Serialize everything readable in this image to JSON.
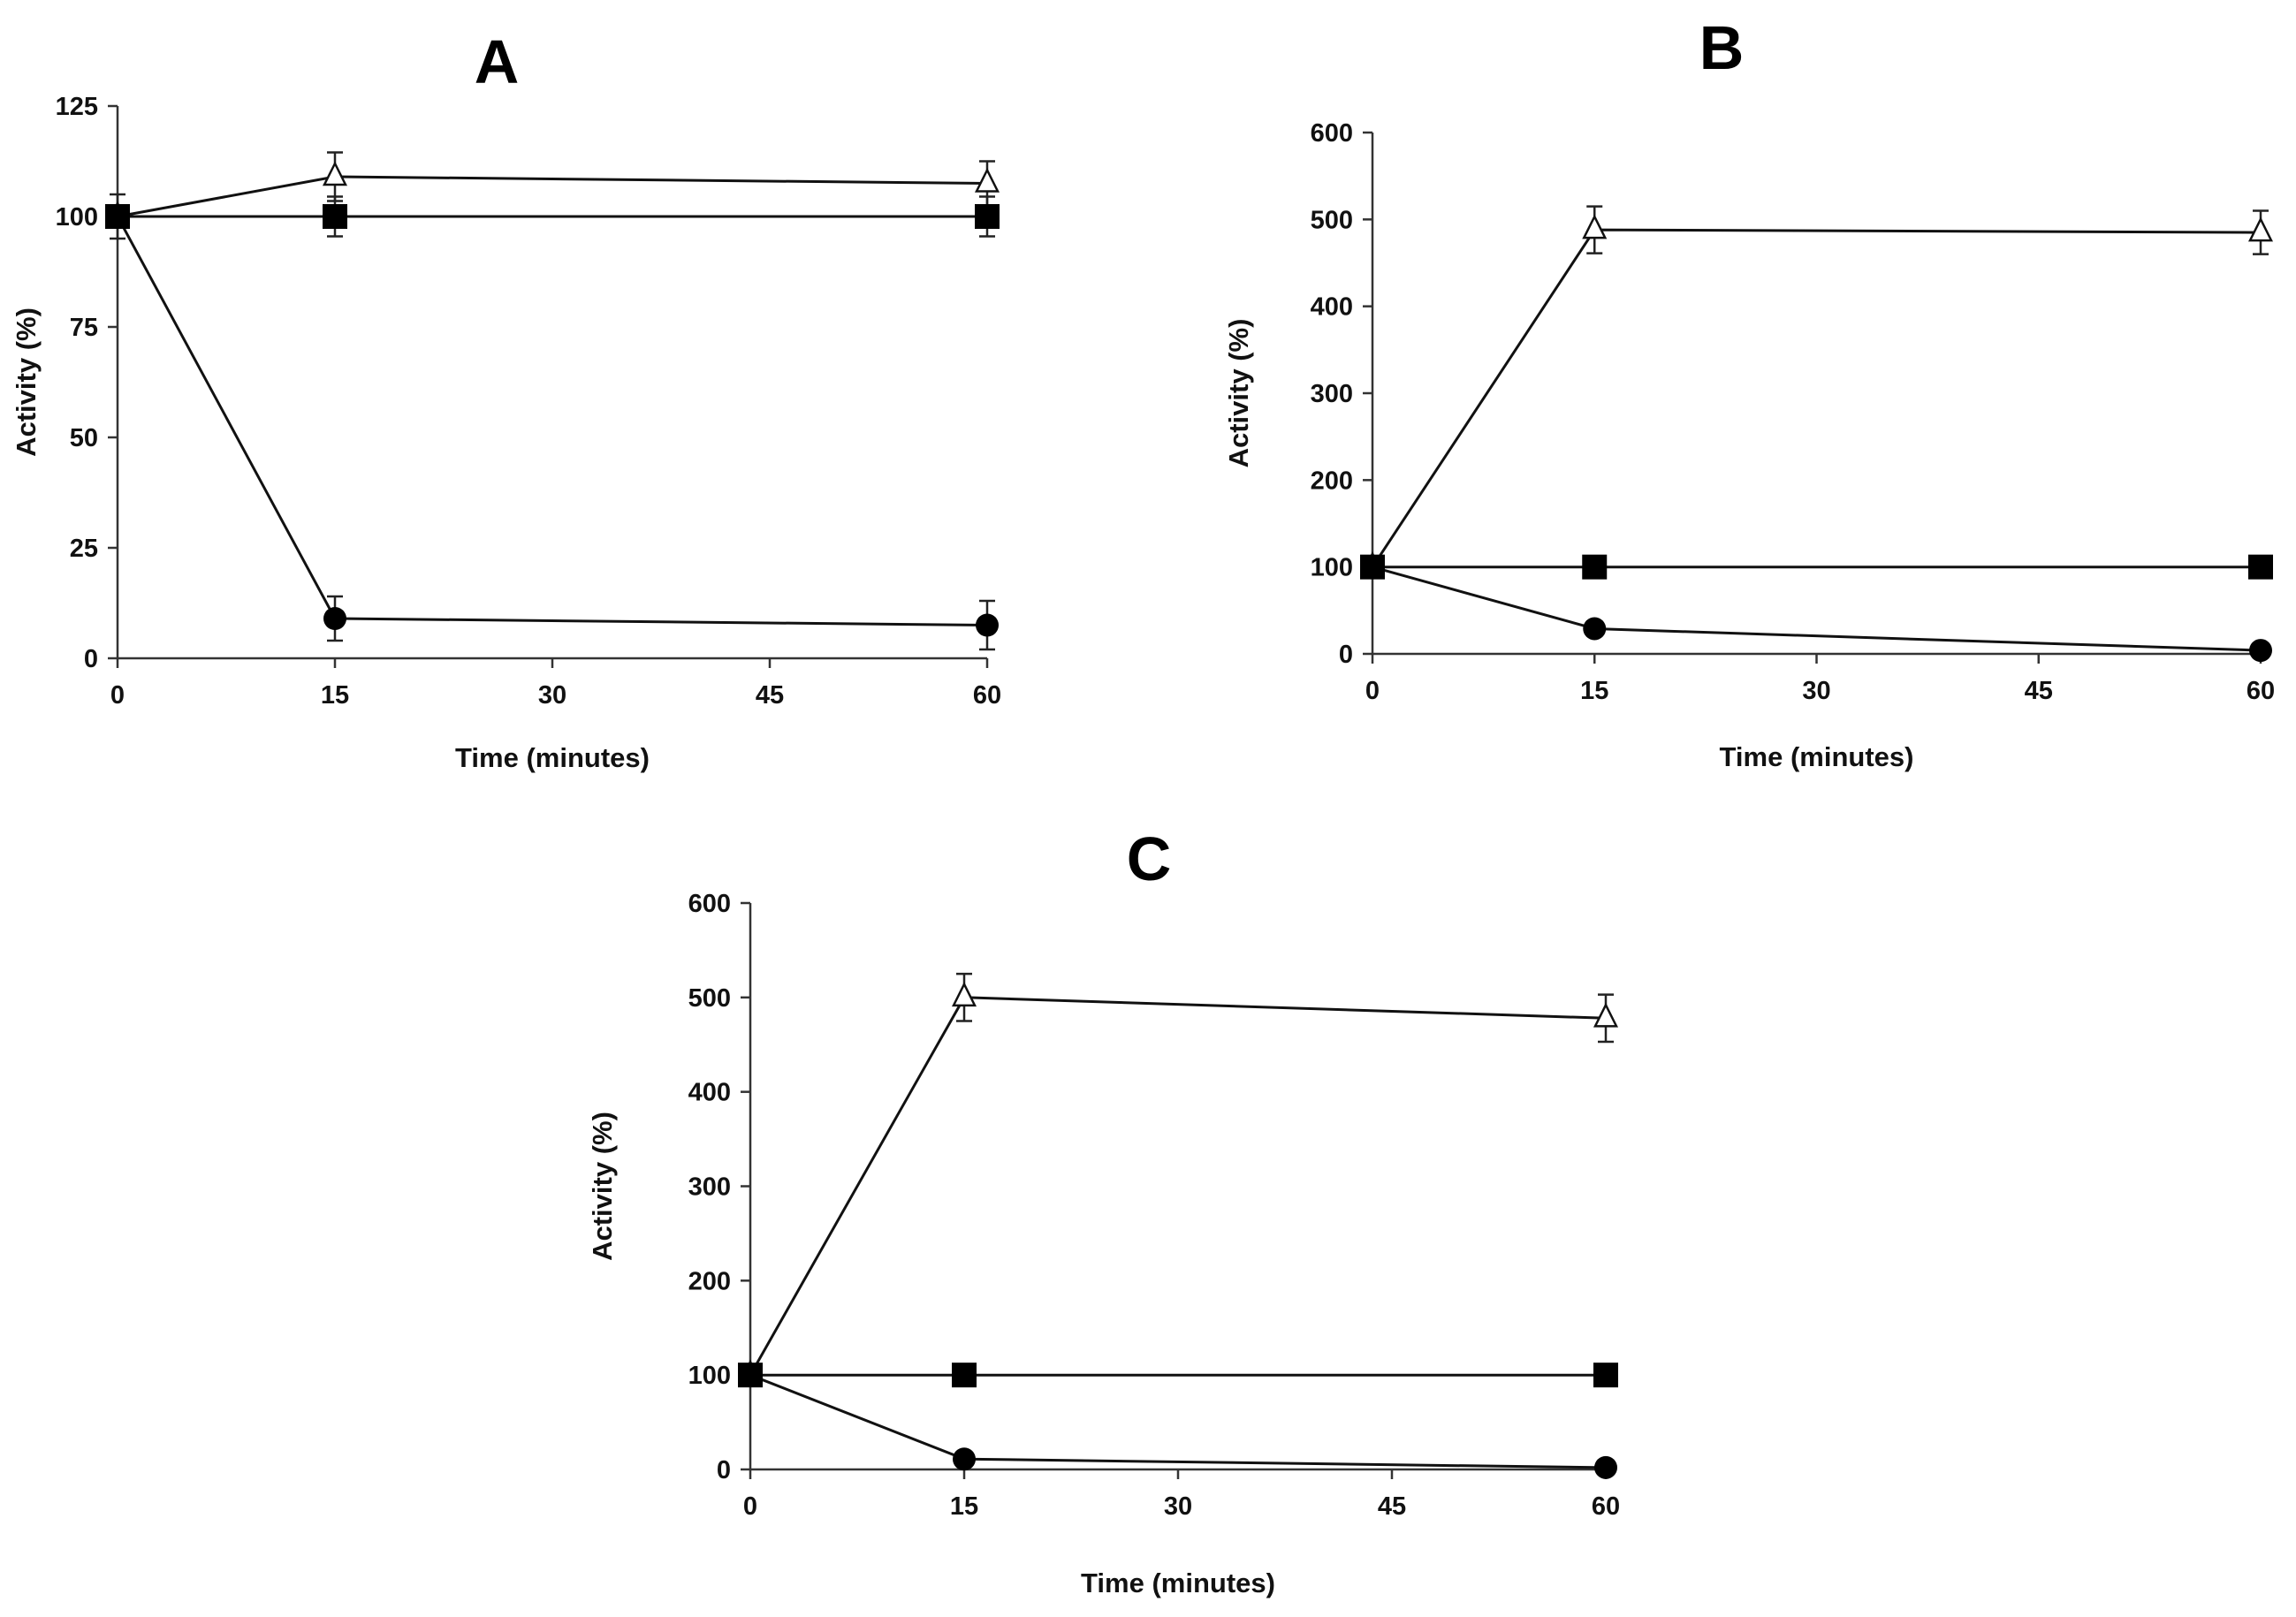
{
  "chart_data": [
    {
      "type": "line",
      "title": "A",
      "xlabel": "Time (minutes)",
      "ylabel": "Activity (%)",
      "x_ticks": [
        0,
        15,
        30,
        45,
        60
      ],
      "y_ticks": [
        0,
        25,
        50,
        75,
        100,
        125
      ],
      "xlim": [
        0,
        60
      ],
      "ylim": [
        0,
        125
      ],
      "grid": false,
      "series": [
        {
          "name": "open-triangle",
          "marker": "triangle-open",
          "x": [
            0,
            15,
            60
          ],
          "values": [
            100,
            109,
            107.5
          ],
          "errors": [
            0,
            5.5,
            5
          ]
        },
        {
          "name": "filled-square",
          "marker": "square-filled",
          "x": [
            0,
            15,
            60
          ],
          "values": [
            100,
            100,
            100
          ],
          "errors": [
            5,
            4.5,
            4.5
          ]
        },
        {
          "name": "filled-circle",
          "marker": "circle-filled",
          "x": [
            0,
            15,
            60
          ],
          "values": [
            100,
            9,
            7.5
          ],
          "errors": [
            0,
            5,
            5.5
          ]
        }
      ]
    },
    {
      "type": "line",
      "title": "B",
      "xlabel": "Time (minutes)",
      "ylabel": "Activity (%)",
      "x_ticks": [
        0,
        15,
        30,
        45,
        60
      ],
      "y_ticks": [
        0,
        100,
        200,
        300,
        400,
        500,
        600
      ],
      "xlim": [
        0,
        60
      ],
      "ylim": [
        0,
        600
      ],
      "grid": false,
      "series": [
        {
          "name": "open-triangle",
          "marker": "triangle-open",
          "x": [
            0,
            15,
            60
          ],
          "values": [
            100,
            488,
            485
          ],
          "errors": [
            0,
            27,
            25
          ]
        },
        {
          "name": "filled-square",
          "marker": "square-filled",
          "x": [
            0,
            15,
            60
          ],
          "values": [
            100,
            100,
            100
          ],
          "errors": [
            0,
            0,
            0
          ]
        },
        {
          "name": "filled-circle",
          "marker": "circle-filled",
          "x": [
            0,
            15,
            60
          ],
          "values": [
            100,
            29,
            4
          ],
          "errors": [
            0,
            0,
            0
          ]
        }
      ]
    },
    {
      "type": "line",
      "title": "C",
      "xlabel": "Time (minutes)",
      "ylabel": "Activity (%)",
      "x_ticks": [
        0,
        15,
        30,
        45,
        60
      ],
      "y_ticks": [
        0,
        100,
        200,
        300,
        400,
        500,
        600
      ],
      "xlim": [
        0,
        60
      ],
      "ylim": [
        0,
        600
      ],
      "grid": false,
      "series": [
        {
          "name": "open-triangle",
          "marker": "triangle-open",
          "x": [
            0,
            15,
            60
          ],
          "values": [
            100,
            500,
            478
          ],
          "errors": [
            0,
            25,
            25
          ]
        },
        {
          "name": "filled-square",
          "marker": "square-filled",
          "x": [
            0,
            15,
            60
          ],
          "values": [
            100,
            100,
            100
          ],
          "errors": [
            0,
            0,
            0
          ]
        },
        {
          "name": "filled-circle",
          "marker": "circle-filled",
          "x": [
            0,
            15,
            60
          ],
          "values": [
            100,
            11,
            2
          ],
          "errors": [
            0,
            0,
            0
          ]
        }
      ]
    }
  ]
}
